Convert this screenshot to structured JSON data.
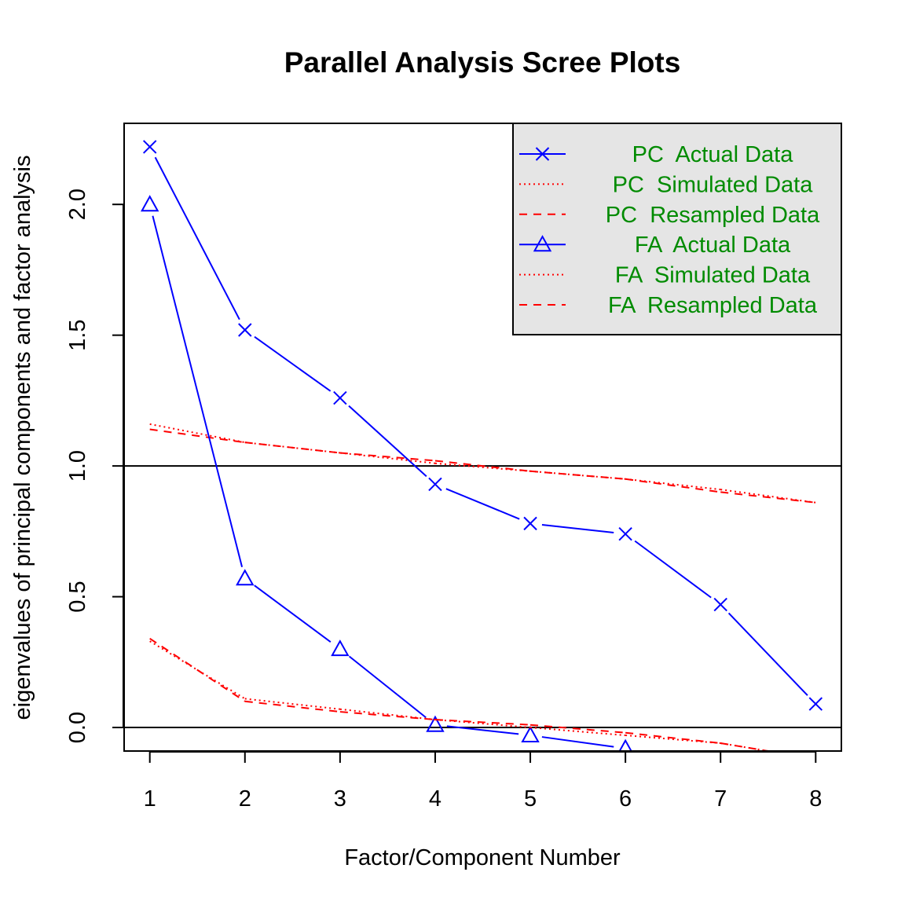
{
  "chart_data": {
    "type": "line",
    "title": "Parallel Analysis Scree Plots",
    "xlabel": "Factor/Component Number",
    "ylabel": "eigenvalues of principal components and factor analysis",
    "x": [
      1,
      2,
      3,
      4,
      5,
      6,
      7,
      8
    ],
    "xlim": [
      0.73,
      8.27
    ],
    "ylim": [
      -0.09,
      2.31
    ],
    "x_ticks": [
      "1",
      "2",
      "3",
      "4",
      "5",
      "6",
      "7",
      "8"
    ],
    "y_ticks": [
      "0.0",
      "0.5",
      "1.0",
      "1.5",
      "2.0"
    ],
    "reference_lines": [
      0,
      1
    ],
    "grid": false,
    "legend_position": "top-right",
    "series": [
      {
        "name": "PC  Actual Data",
        "values": [
          2.22,
          1.52,
          1.26,
          0.93,
          0.78,
          0.74,
          0.47,
          0.09
        ],
        "color": "#0000ff",
        "line": "solid",
        "marker": "cross"
      },
      {
        "name": "PC  Simulated Data",
        "values": [
          1.16,
          1.09,
          1.05,
          1.01,
          0.98,
          0.95,
          0.91,
          0.86
        ],
        "color": "#ff0000",
        "line": "dotted",
        "marker": "none"
      },
      {
        "name": "PC  Resampled Data",
        "values": [
          1.14,
          1.09,
          1.05,
          1.02,
          0.98,
          0.95,
          0.9,
          0.86
        ],
        "color": "#ff0000",
        "line": "dashed",
        "marker": "none"
      },
      {
        "name": "FA  Actual Data",
        "values": [
          2.0,
          0.57,
          0.3,
          0.01,
          -0.03,
          -0.08,
          null,
          null
        ],
        "color": "#0000ff",
        "line": "solid",
        "marker": "triangle"
      },
      {
        "name": "FA  Simulated Data",
        "values": [
          0.33,
          0.11,
          0.07,
          0.03,
          0.0,
          -0.03,
          -0.06,
          -0.12
        ],
        "color": "#ff0000",
        "line": "dotted",
        "marker": "none"
      },
      {
        "name": "FA  Resampled Data",
        "values": [
          0.34,
          0.1,
          0.06,
          0.03,
          0.01,
          -0.02,
          -0.06,
          -0.12
        ],
        "color": "#ff0000",
        "line": "dashed",
        "marker": "none"
      }
    ]
  }
}
